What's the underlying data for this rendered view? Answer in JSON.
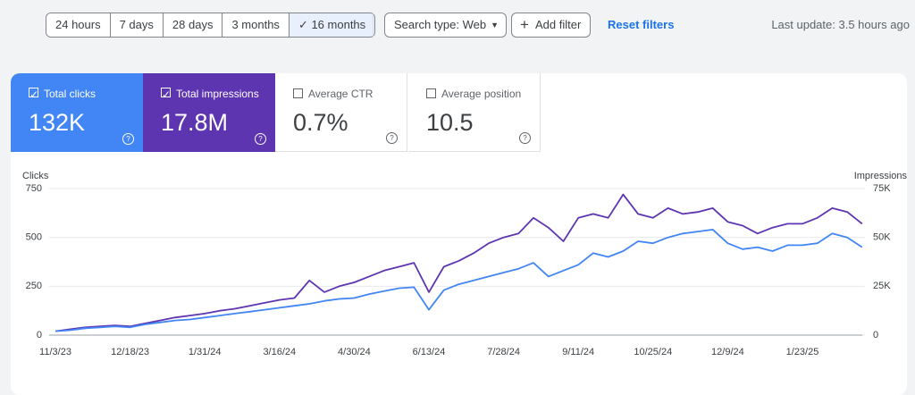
{
  "toolbar": {
    "date_ranges": [
      "24 hours",
      "7 days",
      "28 days",
      "3 months",
      "16 months"
    ],
    "search_type": "Search type: Web",
    "add_filter": "Add filter",
    "reset_filters": "Reset filters",
    "last_update": "Last update: 3.5 hours ago"
  },
  "metrics": [
    {
      "label": "Total clicks",
      "value": "132K"
    },
    {
      "label": "Total impressions",
      "value": "17.8M"
    },
    {
      "label": "Average CTR",
      "value": "0.7%"
    },
    {
      "label": "Average position",
      "value": "10.5"
    }
  ],
  "chart_data": {
    "type": "line",
    "y_label": "Clicks",
    "y2_label": "Impressions",
    "categories": [
      "11/3/23",
      null,
      null,
      null,
      null,
      "12/18/23",
      null,
      null,
      null,
      null,
      "1/31/24",
      null,
      null,
      null,
      null,
      "3/16/24",
      null,
      null,
      null,
      null,
      "4/30/24",
      null,
      null,
      null,
      null,
      "6/13/24",
      null,
      null,
      null,
      null,
      "7/28/24",
      null,
      null,
      null,
      null,
      "9/11/24",
      null,
      null,
      null,
      null,
      "10/25/24",
      null,
      null,
      null,
      null,
      "12/9/24",
      null,
      null,
      null,
      null,
      "1/23/25",
      null,
      null,
      null,
      null
    ],
    "ylim": [
      0,
      750
    ],
    "yticks": [
      0,
      250,
      500,
      750
    ],
    "y2lim": [
      0,
      75000
    ],
    "y2ticks": [
      0,
      {
        "value": 25000,
        "label": "25K"
      },
      {
        "value": 50000,
        "label": "50K"
      },
      {
        "value": 75000,
        "label": "75K"
      }
    ],
    "grid": true,
    "series": [
      {
        "name": "Clicks",
        "color": "#4285f4",
        "values": [
          20,
          25,
          35,
          40,
          45,
          40,
          55,
          65,
          75,
          80,
          90,
          100,
          110,
          120,
          130,
          140,
          150,
          160,
          175,
          185,
          190,
          210,
          225,
          240,
          245,
          130,
          230,
          260,
          280,
          300,
          320,
          340,
          370,
          300,
          330,
          360,
          420,
          400,
          430,
          480,
          470,
          500,
          520,
          530,
          540,
          470,
          440,
          450,
          430,
          460,
          460,
          470,
          520,
          500,
          450
        ]
      },
      {
        "name": "Impressions",
        "color": "#5e35b1",
        "axis": "y2",
        "values": [
          2000,
          3000,
          4000,
          4500,
          5000,
          4500,
          6000,
          7500,
          9000,
          10000,
          11000,
          12500,
          13500,
          15000,
          16500,
          18000,
          19000,
          28000,
          22000,
          25000,
          27000,
          30000,
          33000,
          35000,
          37000,
          22000,
          35000,
          38000,
          42000,
          47000,
          50000,
          52000,
          60000,
          55000,
          48000,
          60000,
          62000,
          60000,
          72000,
          62000,
          60000,
          65000,
          62000,
          63000,
          65000,
          58000,
          56000,
          52000,
          55000,
          57000,
          57000,
          60000,
          65000,
          63000,
          57000
        ]
      }
    ]
  }
}
